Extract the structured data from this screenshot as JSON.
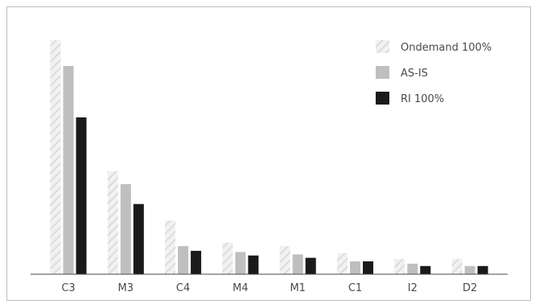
{
  "chart_data": {
    "type": "bar",
    "categories": [
      "C3",
      "M3",
      "C4",
      "M4",
      "M1",
      "C1",
      "I2",
      "D2"
    ],
    "series": [
      {
        "name": "Ondemand 100%",
        "values": [
          100,
          44,
          23,
          13.5,
          12,
          9,
          6.5,
          6.5
        ],
        "color": "#e6e6e6",
        "pattern": "hatch"
      },
      {
        "name": "AS-IS",
        "values": [
          89,
          38.5,
          12,
          9.5,
          8.5,
          5.5,
          4.5,
          3.5
        ],
        "color": "#bfbfbf",
        "pattern": "solid"
      },
      {
        "name": "RI 100%",
        "values": [
          67,
          30,
          10,
          8,
          7,
          5.5,
          3.5,
          3.5
        ],
        "color": "#1a1a1a",
        "pattern": "solid"
      }
    ],
    "ylim": [
      0,
      100
    ],
    "grid": false,
    "legend_position": "top-right",
    "title": "",
    "xlabel": "",
    "ylabel": ""
  }
}
